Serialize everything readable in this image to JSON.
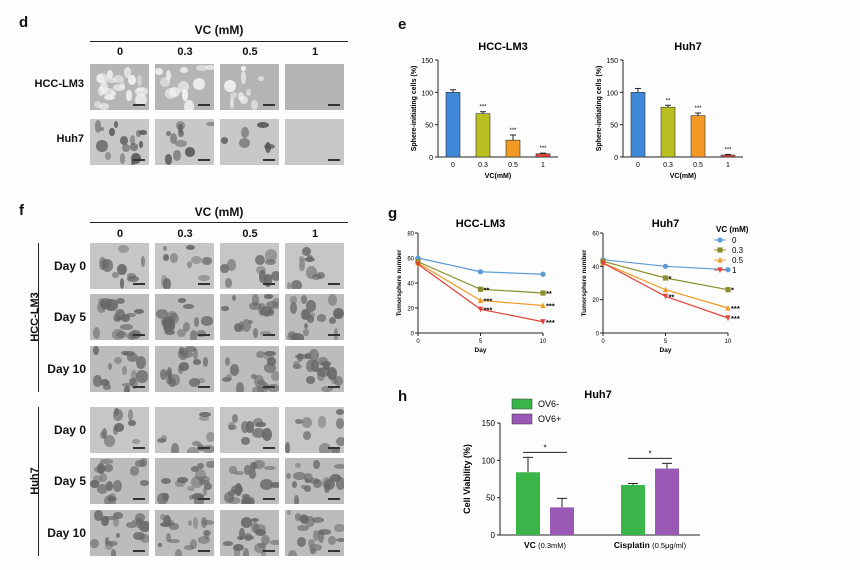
{
  "panels": {
    "d": {
      "letter": "d",
      "header": "VC (mM)",
      "cols": [
        "0",
        "0.3",
        "0.5",
        "1"
      ],
      "rows": [
        "HCC-LM3",
        "Huh7"
      ]
    },
    "e": {
      "letter": "e"
    },
    "f": {
      "letter": "f",
      "header": "VC (mM)",
      "cols": [
        "0",
        "0.3",
        "0.5",
        "1"
      ],
      "groups": [
        {
          "name": "HCC-LM3",
          "days": [
            "Day 0",
            "Day 5",
            "Day 10"
          ]
        },
        {
          "name": "Huh7",
          "days": [
            "Day 0",
            "Day 5",
            "Day 10"
          ]
        }
      ]
    },
    "g": {
      "letter": "g"
    },
    "h": {
      "letter": "h"
    }
  },
  "chart_data": [
    {
      "id": "e1",
      "type": "bar",
      "title": "HCC-LM3",
      "xlabel": "VC(mM)",
      "ylabel": "Sphere-initiating cells (%)",
      "categories": [
        "0",
        "0.3",
        "0.5",
        "1"
      ],
      "values": [
        100,
        67,
        26,
        5
      ],
      "errors": [
        4,
        3,
        8,
        1
      ],
      "annotations": [
        "",
        "***",
        "***",
        "***"
      ],
      "ylim": [
        0,
        150
      ],
      "yticks": [
        0,
        50,
        100,
        150
      ],
      "colors": [
        "#3f88d8",
        "#b9bf1e",
        "#f29a23",
        "#e0443a"
      ]
    },
    {
      "id": "e2",
      "type": "bar",
      "title": "Huh7",
      "xlabel": "VC(mM)",
      "ylabel": "Sphere-initiating cells (%)",
      "categories": [
        "0",
        "0.3",
        "0.5",
        "1"
      ],
      "values": [
        100,
        77,
        64,
        3
      ],
      "errors": [
        6,
        3,
        4,
        1
      ],
      "annotations": [
        "",
        "**",
        "***",
        "***"
      ],
      "ylim": [
        0,
        150
      ],
      "yticks": [
        0,
        50,
        100,
        150
      ],
      "colors": [
        "#3f88d8",
        "#b9bf1e",
        "#f29a23",
        "#e0443a"
      ]
    },
    {
      "id": "g1",
      "type": "line",
      "title": "HCC-LM3",
      "xlabel": "Day",
      "ylabel": "Tumorsphere number",
      "x": [
        0,
        5,
        10
      ],
      "ylim": [
        0,
        80
      ],
      "yticks": [
        0,
        20,
        40,
        60,
        80
      ],
      "xticks": [
        0,
        5,
        10
      ],
      "series": [
        {
          "name": "0",
          "values": [
            60,
            49,
            47
          ],
          "color": "#5b9bd5",
          "marker": "circle",
          "annotations": [
            "",
            "",
            ""
          ]
        },
        {
          "name": "0.3",
          "values": [
            57,
            35,
            32
          ],
          "color": "#8a8f2a",
          "marker": "square",
          "annotations": [
            "",
            "**",
            "**"
          ]
        },
        {
          "name": "0.5",
          "values": [
            56,
            26,
            22
          ],
          "color": "#f29a23",
          "marker": "triangle-up",
          "annotations": [
            "",
            "***",
            "***"
          ]
        },
        {
          "name": "1",
          "values": [
            55,
            19,
            9
          ],
          "color": "#e0443a",
          "marker": "triangle-down",
          "annotations": [
            "",
            "***",
            "***"
          ]
        }
      ]
    },
    {
      "id": "g2",
      "type": "line",
      "title": "Huh7",
      "xlabel": "Day",
      "ylabel": "Tumorsphere number",
      "x": [
        0,
        5,
        10
      ],
      "ylim": [
        0,
        60
      ],
      "yticks": [
        0,
        20,
        40,
        60
      ],
      "xticks": [
        0,
        5,
        10
      ],
      "legend_title": "VC (mM)",
      "legend_position": "top-right",
      "series": [
        {
          "name": "0",
          "values": [
            44,
            40,
            38
          ],
          "color": "#5b9bd5",
          "marker": "circle",
          "annotations": [
            "",
            "",
            ""
          ]
        },
        {
          "name": "0.3",
          "values": [
            43,
            33,
            26
          ],
          "color": "#8a8f2a",
          "marker": "square",
          "annotations": [
            "",
            "*",
            "*"
          ]
        },
        {
          "name": "0.5",
          "values": [
            42,
            26,
            15
          ],
          "color": "#f29a23",
          "marker": "triangle-up",
          "annotations": [
            "",
            "",
            ""
          ]
        },
        {
          "name": "1",
          "values": [
            42,
            22,
            9
          ],
          "color": "#e0443a",
          "marker": "triangle-down",
          "annotations": [
            "",
            "**",
            "***"
          ]
        }
      ],
      "extra_annotations": [
        "***"
      ]
    },
    {
      "id": "h",
      "type": "bar",
      "title": "Huh7",
      "ylabel": "Cell Viability (%)",
      "categories": [
        "VC (0.3mM)",
        "Cisplatin (0.5μg/ml)"
      ],
      "category_main": [
        "VC",
        "Cisplatin"
      ],
      "category_sub": [
        "(0.3mM)",
        "(0.5μg/ml)"
      ],
      "ylim": [
        0,
        150
      ],
      "yticks": [
        0,
        50,
        100,
        150
      ],
      "legend_position": "top-left",
      "series": [
        {
          "name": "OV6-",
          "values": [
            84,
            67
          ],
          "errors": [
            20,
            2
          ],
          "color": "#39b54a"
        },
        {
          "name": "OV6+",
          "values": [
            37,
            89
          ],
          "errors": [
            12,
            7
          ],
          "color": "#9b59b6"
        }
      ],
      "significance": [
        "*",
        "*"
      ]
    }
  ]
}
